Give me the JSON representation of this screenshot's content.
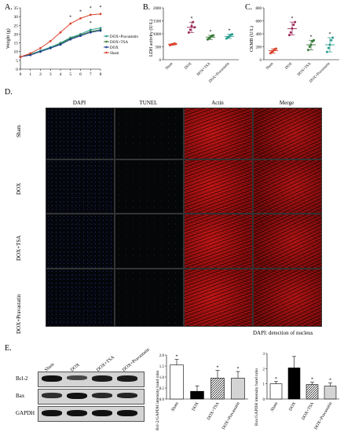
{
  "panels": {
    "A": {
      "label": "A.",
      "chart_data": {
        "type": "line",
        "ylabel": "Weight (g)",
        "x": [
          0,
          1,
          2,
          3,
          4,
          5,
          6,
          7,
          8
        ],
        "ylim": [
          0,
          35
        ],
        "yticks": [
          0,
          5,
          10,
          15,
          20,
          25,
          30,
          35
        ],
        "legend_position": "right",
        "annotations": [
          "*",
          "*",
          "*",
          "*",
          "*"
        ],
        "series": [
          {
            "name": "DOX+Pravastatin",
            "color": "#2a9d8f",
            "values": [
              7,
              8.5,
              10.5,
              12.5,
              15,
              18,
              20,
              22.5,
              23.5
            ]
          },
          {
            "name": "DOX+TSA",
            "color": "#3a7a3a",
            "values": [
              7,
              8.5,
              10,
              12,
              14.5,
              17.5,
              19.5,
              21.5,
              22.5
            ]
          },
          {
            "name": "DOX",
            "color": "#1f3f8f",
            "values": [
              7,
              8,
              10,
              12,
              14,
              17,
              19,
              21,
              22
            ]
          },
          {
            "name": "Sham",
            "color": "#d9452f",
            "values": [
              7,
              9,
              12,
              16,
              21,
              26,
              29,
              31,
              31.5
            ]
          }
        ]
      }
    },
    "B": {
      "label": "B.",
      "chart_data": {
        "type": "scatter",
        "ylabel": "LDH activity (U/L)",
        "ylim": [
          0,
          2000
        ],
        "yticks": [
          0,
          500,
          1000,
          1500,
          2000
        ],
        "categories": [
          "Sham",
          "DOX",
          "DOX+TSA",
          "DOX+Pravastatin"
        ],
        "colors": [
          "#d9452f",
          "#9b2c5a",
          "#3a7a3a",
          "#2a9d8f"
        ],
        "means": [
          600,
          1250,
          870,
          900
        ],
        "points": [
          [
            560,
            580,
            600,
            620,
            610
          ],
          [
            1050,
            1150,
            1300,
            1450,
            1250
          ],
          [
            780,
            820,
            880,
            920,
            940
          ],
          [
            820,
            860,
            900,
            960,
            980
          ]
        ],
        "annotations": [
          "*",
          "*",
          "*"
        ]
      }
    },
    "C": {
      "label": "C.",
      "chart_data": {
        "type": "scatter",
        "ylabel": "CKMB (U/L)",
        "ylim": [
          0,
          800
        ],
        "yticks": [
          0,
          200,
          400,
          600,
          800
        ],
        "categories": [
          "Sham",
          "DOX",
          "DOX+TSA",
          "DOX+Pravastatin"
        ],
        "colors": [
          "#d9452f",
          "#9b2c5a",
          "#3a7a3a",
          "#2a9d8f"
        ],
        "means": [
          140,
          480,
          230,
          230
        ],
        "points": [
          [
            100,
            120,
            140,
            160,
            170
          ],
          [
            380,
            420,
            480,
            540,
            580
          ],
          [
            150,
            200,
            230,
            280,
            300
          ],
          [
            120,
            180,
            230,
            300,
            340
          ]
        ],
        "annotations": [
          "*",
          "*",
          "*"
        ]
      }
    },
    "D": {
      "label": "D.",
      "columns": [
        "DAPI",
        "TUNEL",
        "Actin",
        "Merge"
      ],
      "rows": [
        "Sham",
        "DOX",
        "DOX+TSA",
        "DOX+Pravastatin"
      ],
      "caption": "DAPI:   detection of nucleus"
    },
    "E": {
      "label": "E.",
      "blot": {
        "lanes": [
          "Sham",
          "DOX",
          "DOX+TSA",
          "DOX+Pravastatin"
        ],
        "proteins": [
          "Bcl-2",
          "Bax",
          "GAPDH"
        ]
      },
      "bcl2_chart": {
        "chart_data": {
          "type": "bar",
          "ylabel": "Bcl-2/GAPDH intensity band ratio",
          "categories": [
            "Sham",
            "DOX",
            "DOX+TSA",
            "DOX+Pravastatin"
          ],
          "values": [
            1.55,
            0.35,
            0.95,
            0.95
          ],
          "errors": [
            0.25,
            0.25,
            0.35,
            0.3
          ],
          "ylim": [
            0,
            2.0
          ],
          "yticks": [
            "0.0",
            "0.5",
            "1.0",
            "1.5",
            "2.0"
          ],
          "annotations": [
            "*",
            "*",
            "*"
          ]
        }
      },
      "bax_chart": {
        "chart_data": {
          "type": "bar",
          "ylabel": "Bax/GAPDH intensity band ratio",
          "categories": [
            "Sham",
            "DOX",
            "DOX+TSA",
            "DOX+Pravastatin"
          ],
          "values": [
            1.0,
            2.05,
            0.95,
            0.85
          ],
          "errors": [
            0.15,
            0.75,
            0.15,
            0.2
          ],
          "ylim": [
            0,
            3
          ],
          "yticks": [
            "0",
            "1",
            "2",
            "3"
          ],
          "annotations": [
            "*",
            "*",
            "*"
          ]
        }
      }
    }
  }
}
